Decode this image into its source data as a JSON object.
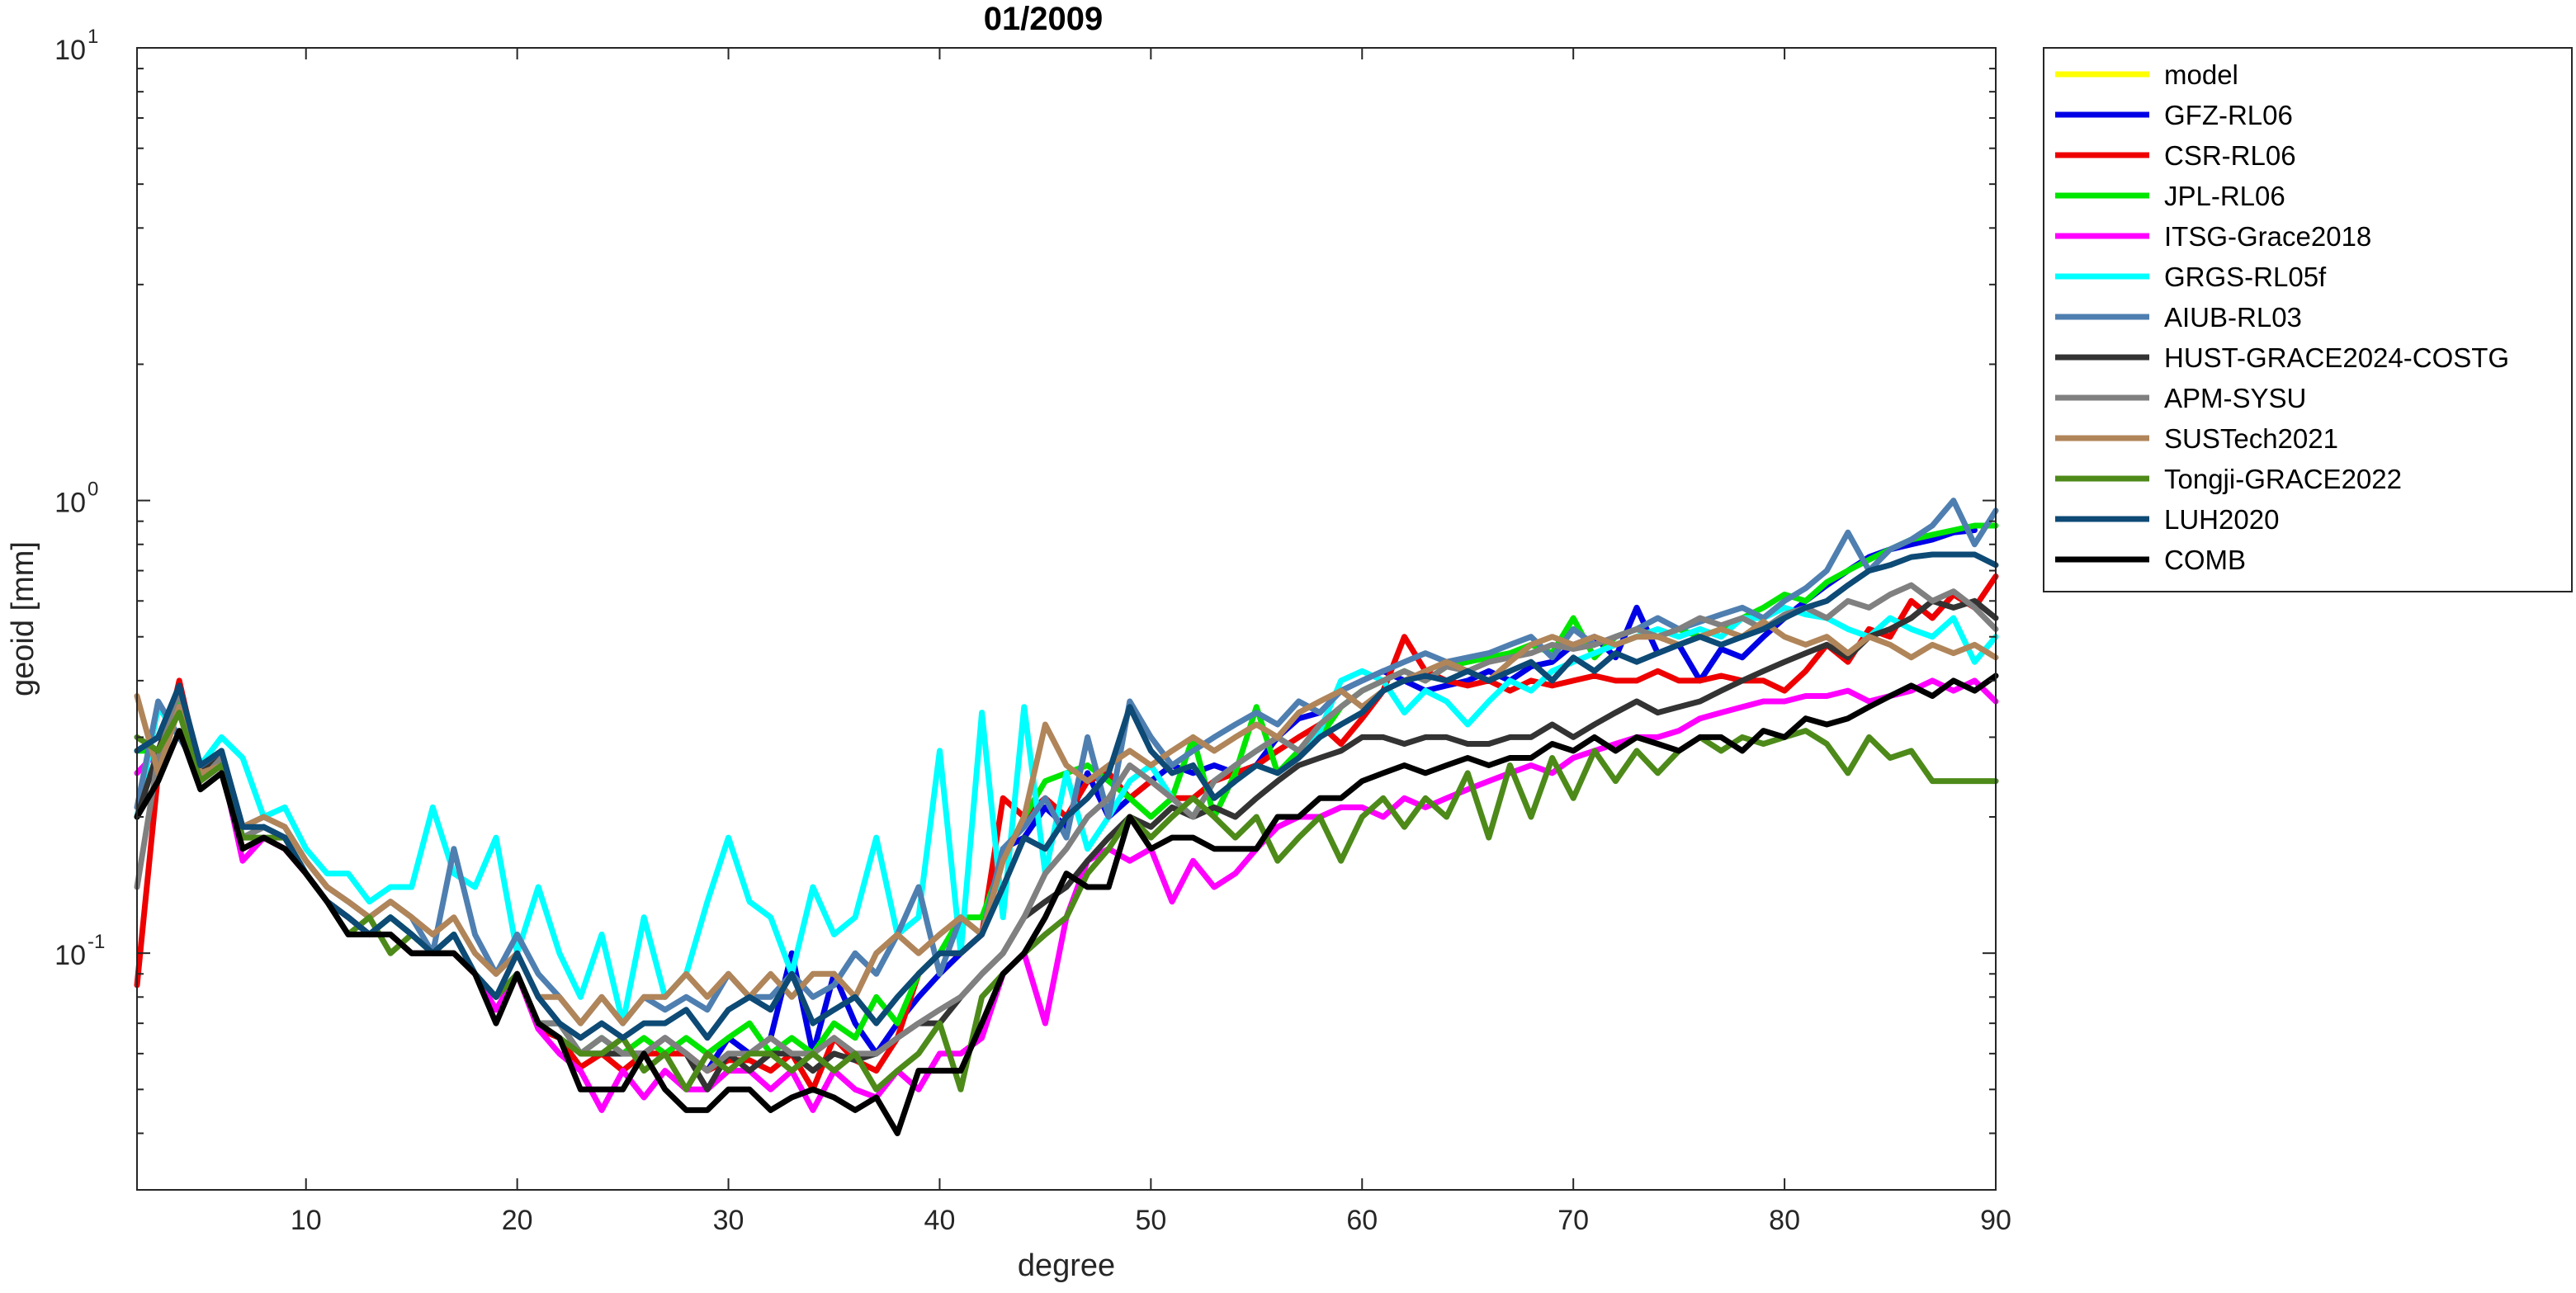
{
  "chart_data": {
    "type": "line",
    "title": "01/2009",
    "xlabel": "degree",
    "ylabel": "geoid [mm]",
    "xlim": [
      2,
      90
    ],
    "ylim": [
      0.03,
      10
    ],
    "yscale": "log",
    "grid": false,
    "legend_position": "outside-right",
    "x_ticks": [
      "10",
      "20",
      "30",
      "40",
      "50",
      "60",
      "70",
      "80",
      "90"
    ],
    "y_ticks": [
      {
        "base": "10",
        "exp": "1"
      },
      {
        "base": "10",
        "exp": "0"
      },
      {
        "base": "10",
        "exp": "-1"
      }
    ],
    "x_start": 2,
    "series": [
      {
        "name": "model",
        "color": "#ffff00",
        "values": []
      },
      {
        "name": "GFZ-RL06",
        "color": "#0000e6",
        "values": [
          0.28,
          0.3,
          0.38,
          0.26,
          0.27,
          0.18,
          0.19,
          0.18,
          0.15,
          0.13,
          0.12,
          0.11,
          0.12,
          0.11,
          0.1,
          0.11,
          0.09,
          0.08,
          0.09,
          0.07,
          0.07,
          0.06,
          0.06,
          0.06,
          0.06,
          0.065,
          0.06,
          0.055,
          0.065,
          0.06,
          0.065,
          0.1,
          0.06,
          0.09,
          0.07,
          0.06,
          0.07,
          0.08,
          0.09,
          0.1,
          0.11,
          0.17,
          0.18,
          0.21,
          0.19,
          0.25,
          0.2,
          0.22,
          0.24,
          0.26,
          0.25,
          0.26,
          0.25,
          0.26,
          0.3,
          0.33,
          0.34,
          0.38,
          0.4,
          0.42,
          0.4,
          0.38,
          0.39,
          0.4,
          0.42,
          0.4,
          0.43,
          0.44,
          0.48,
          0.5,
          0.45,
          0.58,
          0.46,
          0.48,
          0.4,
          0.47,
          0.45,
          0.5,
          0.55,
          0.6,
          0.65,
          0.7,
          0.75,
          0.78,
          0.8,
          0.82,
          0.85,
          0.86
        ]
      },
      {
        "name": "CSR-RL06",
        "color": "#ee0000",
        "values": [
          0.085,
          0.25,
          0.4,
          0.25,
          0.26,
          0.17,
          0.18,
          0.17,
          0.15,
          0.13,
          0.12,
          0.11,
          0.11,
          0.1,
          0.1,
          0.1,
          0.09,
          0.075,
          0.09,
          0.068,
          0.065,
          0.056,
          0.06,
          0.055,
          0.06,
          0.06,
          0.06,
          0.055,
          0.058,
          0.058,
          0.055,
          0.06,
          0.05,
          0.065,
          0.058,
          0.055,
          0.065,
          0.09,
          0.1,
          0.1,
          0.11,
          0.22,
          0.2,
          0.22,
          0.2,
          0.24,
          0.25,
          0.22,
          0.24,
          0.22,
          0.22,
          0.24,
          0.25,
          0.26,
          0.28,
          0.3,
          0.32,
          0.29,
          0.33,
          0.38,
          0.5,
          0.42,
          0.4,
          0.39,
          0.4,
          0.38,
          0.4,
          0.39,
          0.4,
          0.41,
          0.4,
          0.4,
          0.42,
          0.4,
          0.4,
          0.41,
          0.4,
          0.4,
          0.38,
          0.42,
          0.48,
          0.44,
          0.52,
          0.5,
          0.6,
          0.55,
          0.62,
          0.58,
          0.68
        ]
      },
      {
        "name": "JPL-RL06",
        "color": "#00e600",
        "values": [
          0.28,
          0.28,
          0.37,
          0.26,
          0.27,
          0.18,
          0.19,
          0.18,
          0.15,
          0.13,
          0.12,
          0.11,
          0.12,
          0.11,
          0.1,
          0.11,
          0.09,
          0.08,
          0.09,
          0.07,
          0.07,
          0.06,
          0.065,
          0.06,
          0.065,
          0.06,
          0.065,
          0.06,
          0.065,
          0.07,
          0.06,
          0.065,
          0.06,
          0.07,
          0.065,
          0.08,
          0.07,
          0.09,
          0.1,
          0.12,
          0.12,
          0.16,
          0.2,
          0.24,
          0.25,
          0.26,
          0.24,
          0.22,
          0.2,
          0.22,
          0.3,
          0.2,
          0.25,
          0.35,
          0.25,
          0.28,
          0.3,
          0.35,
          0.38,
          0.4,
          0.42,
          0.4,
          0.43,
          0.44,
          0.45,
          0.46,
          0.48,
          0.46,
          0.55,
          0.45,
          0.5,
          0.52,
          0.5,
          0.52,
          0.5,
          0.52,
          0.55,
          0.58,
          0.62,
          0.6,
          0.66,
          0.7,
          0.74,
          0.78,
          0.82,
          0.84,
          0.86,
          0.88,
          0.88
        ]
      },
      {
        "name": "ITSG-Grace2018",
        "color": "#ff00ff",
        "values": [
          0.25,
          0.28,
          0.35,
          0.24,
          0.26,
          0.16,
          0.18,
          0.17,
          0.15,
          0.13,
          0.12,
          0.11,
          0.11,
          0.1,
          0.1,
          0.1,
          0.09,
          0.075,
          0.09,
          0.068,
          0.06,
          0.055,
          0.045,
          0.055,
          0.048,
          0.055,
          0.05,
          0.05,
          0.055,
          0.055,
          0.05,
          0.055,
          0.045,
          0.055,
          0.05,
          0.048,
          0.055,
          0.05,
          0.06,
          0.06,
          0.065,
          0.09,
          0.1,
          0.07,
          0.12,
          0.16,
          0.17,
          0.16,
          0.17,
          0.13,
          0.16,
          0.14,
          0.15,
          0.17,
          0.19,
          0.2,
          0.2,
          0.21,
          0.21,
          0.2,
          0.22,
          0.21,
          0.22,
          0.23,
          0.24,
          0.25,
          0.26,
          0.25,
          0.27,
          0.28,
          0.29,
          0.3,
          0.3,
          0.31,
          0.33,
          0.34,
          0.35,
          0.36,
          0.36,
          0.37,
          0.37,
          0.38,
          0.36,
          0.37,
          0.38,
          0.4,
          0.38,
          0.4,
          0.36
        ]
      },
      {
        "name": "GRGS-RL05f",
        "color": "#00ffff",
        "values": [
          0.2,
          0.35,
          0.3,
          0.26,
          0.3,
          0.27,
          0.2,
          0.21,
          0.17,
          0.15,
          0.15,
          0.13,
          0.14,
          0.14,
          0.21,
          0.15,
          0.14,
          0.18,
          0.1,
          0.14,
          0.1,
          0.08,
          0.11,
          0.07,
          0.12,
          0.08,
          0.09,
          0.13,
          0.18,
          0.13,
          0.12,
          0.09,
          0.14,
          0.11,
          0.12,
          0.18,
          0.11,
          0.12,
          0.28,
          0.1,
          0.34,
          0.12,
          0.35,
          0.15,
          0.25,
          0.17,
          0.2,
          0.24,
          0.26,
          0.22,
          0.2,
          0.24,
          0.26,
          0.28,
          0.3,
          0.28,
          0.31,
          0.4,
          0.42,
          0.4,
          0.34,
          0.38,
          0.36,
          0.32,
          0.36,
          0.4,
          0.38,
          0.42,
          0.44,
          0.46,
          0.48,
          0.5,
          0.52,
          0.5,
          0.52,
          0.5,
          0.55,
          0.55,
          0.58,
          0.56,
          0.55,
          0.52,
          0.5,
          0.55,
          0.52,
          0.5,
          0.55,
          0.44,
          0.5
        ]
      },
      {
        "name": "AIUB-RL03",
        "color": "#4f7fb0",
        "values": [
          0.21,
          0.36,
          0.3,
          0.25,
          0.28,
          0.19,
          0.2,
          0.19,
          0.16,
          0.14,
          0.13,
          0.12,
          0.13,
          0.12,
          0.1,
          0.17,
          0.11,
          0.09,
          0.11,
          0.09,
          0.08,
          0.07,
          0.08,
          0.07,
          0.08,
          0.075,
          0.08,
          0.075,
          0.09,
          0.08,
          0.08,
          0.09,
          0.08,
          0.085,
          0.1,
          0.09,
          0.11,
          0.14,
          0.09,
          0.12,
          0.11,
          0.17,
          0.19,
          0.22,
          0.18,
          0.3,
          0.2,
          0.36,
          0.3,
          0.26,
          0.28,
          0.3,
          0.32,
          0.34,
          0.32,
          0.36,
          0.34,
          0.38,
          0.4,
          0.42,
          0.44,
          0.46,
          0.44,
          0.45,
          0.46,
          0.48,
          0.5,
          0.45,
          0.52,
          0.48,
          0.5,
          0.52,
          0.55,
          0.52,
          0.54,
          0.56,
          0.58,
          0.55,
          0.6,
          0.64,
          0.7,
          0.85,
          0.7,
          0.78,
          0.82,
          0.88,
          1.0,
          0.8,
          0.95
        ]
      },
      {
        "name": "HUST-GRACE2024-COSTG",
        "color": "#333333",
        "values": [
          0.2,
          0.28,
          0.38,
          0.25,
          0.27,
          0.18,
          0.19,
          0.18,
          0.15,
          0.13,
          0.12,
          0.11,
          0.11,
          0.1,
          0.1,
          0.1,
          0.09,
          0.08,
          0.09,
          0.07,
          0.07,
          0.06,
          0.06,
          0.06,
          0.06,
          0.065,
          0.06,
          0.05,
          0.06,
          0.055,
          0.06,
          0.06,
          0.055,
          0.06,
          0.058,
          0.06,
          0.065,
          0.07,
          0.07,
          0.08,
          0.09,
          0.1,
          0.12,
          0.13,
          0.14,
          0.16,
          0.18,
          0.2,
          0.19,
          0.21,
          0.2,
          0.21,
          0.2,
          0.22,
          0.24,
          0.26,
          0.27,
          0.28,
          0.3,
          0.3,
          0.29,
          0.3,
          0.3,
          0.29,
          0.29,
          0.3,
          0.3,
          0.32,
          0.3,
          0.32,
          0.34,
          0.36,
          0.34,
          0.35,
          0.36,
          0.38,
          0.4,
          0.42,
          0.44,
          0.46,
          0.48,
          0.45,
          0.5,
          0.52,
          0.55,
          0.6,
          0.58,
          0.6,
          0.55
        ]
      },
      {
        "name": "APM-SYSU",
        "color": "#808080",
        "values": [
          0.14,
          0.27,
          0.38,
          0.24,
          0.27,
          0.18,
          0.19,
          0.18,
          0.15,
          0.13,
          0.12,
          0.11,
          0.11,
          0.1,
          0.1,
          0.11,
          0.09,
          0.08,
          0.09,
          0.07,
          0.07,
          0.06,
          0.065,
          0.06,
          0.06,
          0.065,
          0.06,
          0.055,
          0.06,
          0.06,
          0.065,
          0.06,
          0.06,
          0.065,
          0.06,
          0.06,
          0.065,
          0.07,
          0.075,
          0.08,
          0.09,
          0.1,
          0.12,
          0.15,
          0.17,
          0.2,
          0.22,
          0.26,
          0.24,
          0.22,
          0.2,
          0.24,
          0.26,
          0.28,
          0.3,
          0.28,
          0.32,
          0.35,
          0.38,
          0.4,
          0.42,
          0.4,
          0.43,
          0.42,
          0.44,
          0.45,
          0.46,
          0.48,
          0.47,
          0.48,
          0.5,
          0.52,
          0.5,
          0.52,
          0.55,
          0.53,
          0.55,
          0.52,
          0.56,
          0.58,
          0.55,
          0.6,
          0.58,
          0.62,
          0.65,
          0.6,
          0.63,
          0.58,
          0.52
        ]
      },
      {
        "name": "SUSTech2021",
        "color": "#b0855a",
        "values": [
          0.37,
          0.25,
          0.35,
          0.25,
          0.26,
          0.19,
          0.2,
          0.19,
          0.16,
          0.14,
          0.13,
          0.12,
          0.13,
          0.12,
          0.11,
          0.12,
          0.1,
          0.09,
          0.1,
          0.08,
          0.08,
          0.07,
          0.08,
          0.07,
          0.08,
          0.08,
          0.09,
          0.08,
          0.09,
          0.08,
          0.09,
          0.08,
          0.09,
          0.09,
          0.08,
          0.1,
          0.11,
          0.1,
          0.11,
          0.12,
          0.11,
          0.16,
          0.2,
          0.32,
          0.26,
          0.24,
          0.26,
          0.28,
          0.26,
          0.28,
          0.3,
          0.28,
          0.3,
          0.32,
          0.3,
          0.34,
          0.36,
          0.38,
          0.35,
          0.38,
          0.4,
          0.42,
          0.44,
          0.42,
          0.4,
          0.44,
          0.48,
          0.5,
          0.48,
          0.5,
          0.48,
          0.5,
          0.5,
          0.48,
          0.5,
          0.52,
          0.5,
          0.54,
          0.5,
          0.48,
          0.5,
          0.46,
          0.5,
          0.48,
          0.45,
          0.48,
          0.46,
          0.48,
          0.45
        ]
      },
      {
        "name": "Tongji-GRACE2022",
        "color": "#4d8a1a",
        "values": [
          0.3,
          0.28,
          0.34,
          0.24,
          0.26,
          0.18,
          0.18,
          0.18,
          0.15,
          0.13,
          0.11,
          0.12,
          0.1,
          0.11,
          0.1,
          0.1,
          0.09,
          0.08,
          0.09,
          0.07,
          0.065,
          0.06,
          0.06,
          0.065,
          0.055,
          0.06,
          0.05,
          0.06,
          0.055,
          0.06,
          0.06,
          0.055,
          0.06,
          0.055,
          0.06,
          0.05,
          0.055,
          0.06,
          0.07,
          0.05,
          0.08,
          0.09,
          0.1,
          0.11,
          0.12,
          0.15,
          0.17,
          0.2,
          0.18,
          0.2,
          0.22,
          0.2,
          0.18,
          0.2,
          0.16,
          0.18,
          0.2,
          0.16,
          0.2,
          0.22,
          0.19,
          0.22,
          0.2,
          0.25,
          0.18,
          0.26,
          0.2,
          0.27,
          0.22,
          0.28,
          0.24,
          0.28,
          0.25,
          0.28,
          0.3,
          0.28,
          0.3,
          0.29,
          0.3,
          0.31,
          0.29,
          0.25,
          0.3,
          0.27,
          0.28,
          0.24,
          0.24,
          0.24,
          0.24
        ]
      },
      {
        "name": "LUH2020",
        "color": "#0d4a75",
        "values": [
          0.28,
          0.3,
          0.39,
          0.26,
          0.28,
          0.19,
          0.19,
          0.18,
          0.15,
          0.13,
          0.12,
          0.11,
          0.12,
          0.11,
          0.1,
          0.11,
          0.09,
          0.08,
          0.1,
          0.08,
          0.07,
          0.065,
          0.07,
          0.065,
          0.07,
          0.07,
          0.075,
          0.065,
          0.075,
          0.08,
          0.075,
          0.09,
          0.07,
          0.075,
          0.08,
          0.07,
          0.08,
          0.09,
          0.1,
          0.1,
          0.11,
          0.14,
          0.18,
          0.17,
          0.2,
          0.22,
          0.25,
          0.35,
          0.28,
          0.25,
          0.26,
          0.22,
          0.24,
          0.26,
          0.25,
          0.27,
          0.3,
          0.32,
          0.34,
          0.38,
          0.4,
          0.41,
          0.4,
          0.42,
          0.4,
          0.42,
          0.44,
          0.4,
          0.45,
          0.42,
          0.46,
          0.44,
          0.46,
          0.48,
          0.5,
          0.48,
          0.5,
          0.52,
          0.55,
          0.58,
          0.6,
          0.65,
          0.7,
          0.72,
          0.75,
          0.76,
          0.76,
          0.76,
          0.72
        ]
      },
      {
        "name": "COMB",
        "color": "#000000",
        "values": [
          0.2,
          0.24,
          0.31,
          0.23,
          0.25,
          0.17,
          0.18,
          0.17,
          0.15,
          0.13,
          0.11,
          0.11,
          0.11,
          0.1,
          0.1,
          0.1,
          0.09,
          0.07,
          0.09,
          0.07,
          0.065,
          0.05,
          0.05,
          0.05,
          0.06,
          0.05,
          0.045,
          0.045,
          0.05,
          0.05,
          0.045,
          0.048,
          0.05,
          0.048,
          0.045,
          0.048,
          0.04,
          0.055,
          0.055,
          0.055,
          0.07,
          0.09,
          0.1,
          0.12,
          0.15,
          0.14,
          0.14,
          0.2,
          0.17,
          0.18,
          0.18,
          0.17,
          0.17,
          0.17,
          0.2,
          0.2,
          0.22,
          0.22,
          0.24,
          0.25,
          0.26,
          0.25,
          0.26,
          0.27,
          0.26,
          0.27,
          0.27,
          0.29,
          0.28,
          0.3,
          0.28,
          0.3,
          0.29,
          0.28,
          0.3,
          0.3,
          0.28,
          0.31,
          0.3,
          0.33,
          0.32,
          0.33,
          0.35,
          0.37,
          0.39,
          0.37,
          0.4,
          0.38,
          0.41
        ]
      }
    ]
  }
}
